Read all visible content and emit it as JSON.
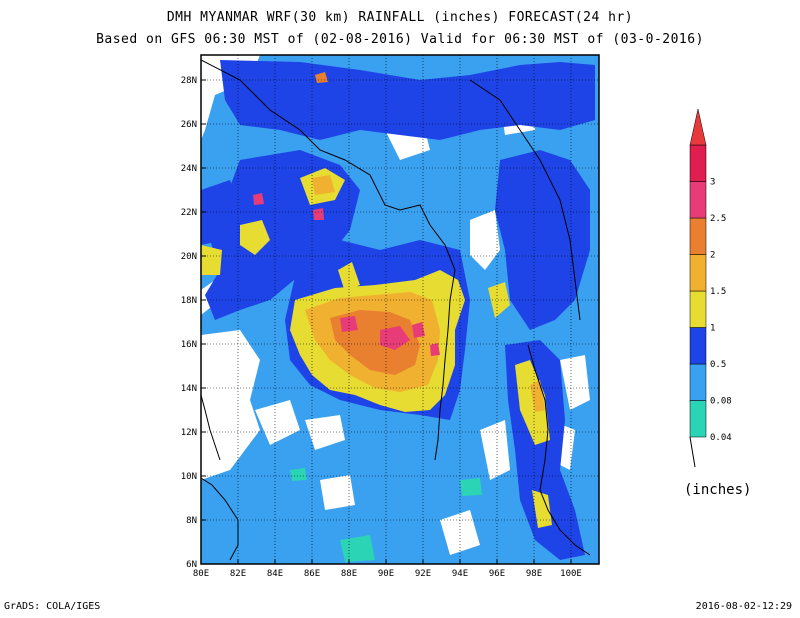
{
  "title_line1": "DMH MYANMAR WRF(30 km) RAINFALL (inches) FORECAST(24 hr)",
  "title_line2": "Based on GFS 06:30 MST of (02-08-2016) Valid for 06:30 MST of (03-0-2016)",
  "footer_left": "GrADS: COLA/IGES",
  "footer_right": "2016-08-02-12:29",
  "map": {
    "lon_ticks": [
      "80E",
      "82E",
      "84E",
      "86E",
      "88E",
      "90E",
      "92E",
      "94E",
      "96E",
      "98E",
      "100E"
    ],
    "lat_ticks": [
      "6N",
      "8N",
      "10N",
      "12N",
      "14N",
      "16N",
      "18N",
      "20N",
      "22N",
      "24N",
      "26N",
      "28N"
    ]
  },
  "legend": {
    "unit": "(inches)",
    "labels": [
      "0.04",
      "0.08",
      "0.5",
      "1",
      "1.5",
      "2",
      "2.5",
      "3"
    ],
    "colors": [
      "#2bd4b4",
      "#3aa0f0",
      "#1e44e8",
      "#e6dc32",
      "#f0b030",
      "#e88030",
      "#e83c78",
      "#e01e50"
    ],
    "arrow_color": "#e83a3a"
  }
}
